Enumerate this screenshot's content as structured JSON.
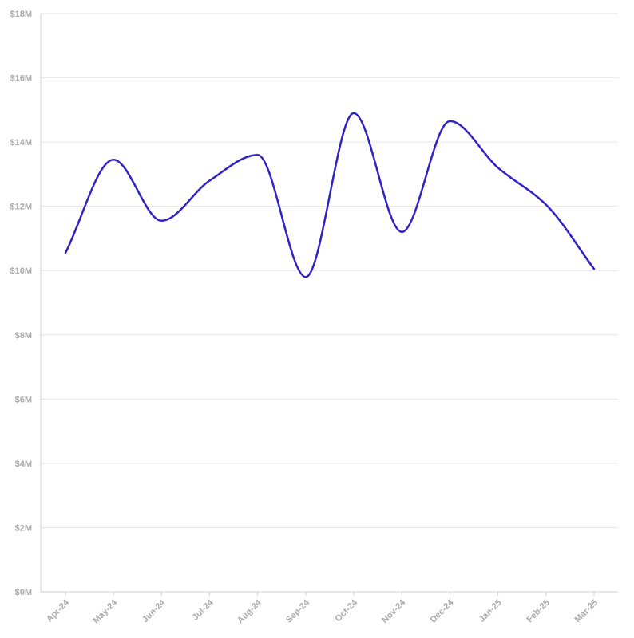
{
  "chart_data": {
    "type": "line",
    "title": "",
    "xlabel": "",
    "ylabel": "",
    "categories": [
      "Apr-24",
      "May-24",
      "Jun-24",
      "Jul-24",
      "Aug-24",
      "Sep-24",
      "Oct-24",
      "Nov-24",
      "Dec-24",
      "Jan-25",
      "Feb-25",
      "Mar-25"
    ],
    "series": [
      {
        "values": [
          10.55,
          13.45,
          11.55,
          12.8,
          13.6,
          9.8,
          14.9,
          11.2,
          14.65,
          13.2,
          12.05,
          10.05
        ]
      }
    ],
    "y_ticks": [
      "$0M",
      "$2M",
      "$4M",
      "$6M",
      "$8M",
      "$10M",
      "$12M",
      "$14M",
      "$16M",
      "$18M"
    ],
    "y_tick_values": [
      0,
      2,
      4,
      6,
      8,
      10,
      12,
      14,
      16,
      18
    ],
    "ylim": [
      0,
      18
    ],
    "grid": true,
    "legend": "none",
    "colors": {
      "line": "#2f22c8",
      "grid": "#e6e6e6",
      "axis": "#d0d0d0",
      "tick_text": "#aaaaaa"
    }
  }
}
